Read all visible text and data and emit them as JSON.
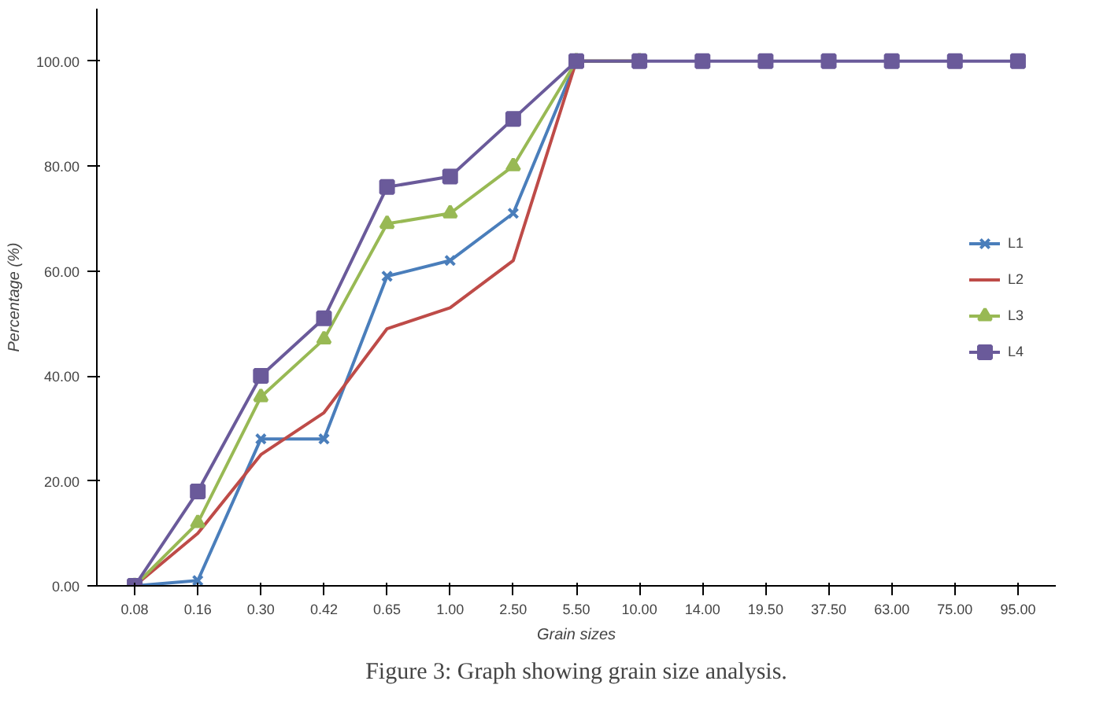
{
  "chart_data": {
    "type": "line",
    "xlabel": "Grain sizes",
    "ylabel": "Percentage (%)",
    "categories": [
      "0.08",
      "0.16",
      "0.30",
      "0.42",
      "0.65",
      "1.00",
      "2.50",
      "5.50",
      "10.00",
      "14.00",
      "19.50",
      "37.50",
      "63.00",
      "75.00",
      "95.00"
    ],
    "ylim": [
      0,
      110
    ],
    "yticks": [
      {
        "value": 0,
        "label": "0.00"
      },
      {
        "value": 20,
        "label": "20.00"
      },
      {
        "value": 40,
        "label": "40.00"
      },
      {
        "value": 60,
        "label": "60.00"
      },
      {
        "value": 80,
        "label": "80.00"
      },
      {
        "value": 100,
        "label": "100.00"
      }
    ],
    "grid": false,
    "legend": "right",
    "series": [
      {
        "name": "L1",
        "color": "#4a7ebb",
        "marker": "cross",
        "values": [
          0,
          1,
          28,
          28,
          59,
          62,
          71,
          100,
          100,
          null,
          null,
          null,
          null,
          null,
          null
        ]
      },
      {
        "name": "L2",
        "color": "#be4b48",
        "marker": "none",
        "values": [
          0,
          10,
          25,
          33,
          49,
          53,
          62,
          100,
          100,
          null,
          null,
          null,
          null,
          null,
          null
        ]
      },
      {
        "name": "L3",
        "color": "#98b954",
        "marker": "triangle",
        "values": [
          0,
          12,
          36,
          47,
          69,
          71,
          80,
          100,
          100,
          null,
          null,
          null,
          null,
          null,
          null
        ]
      },
      {
        "name": "L4",
        "color": "#6a5a9a",
        "marker": "square",
        "values": [
          0,
          18,
          40,
          51,
          76,
          78,
          89,
          100,
          100,
          100,
          100,
          100,
          100,
          100,
          100
        ]
      }
    ],
    "annotations": [
      "Figure 3: Graph showing grain size analysis."
    ]
  }
}
